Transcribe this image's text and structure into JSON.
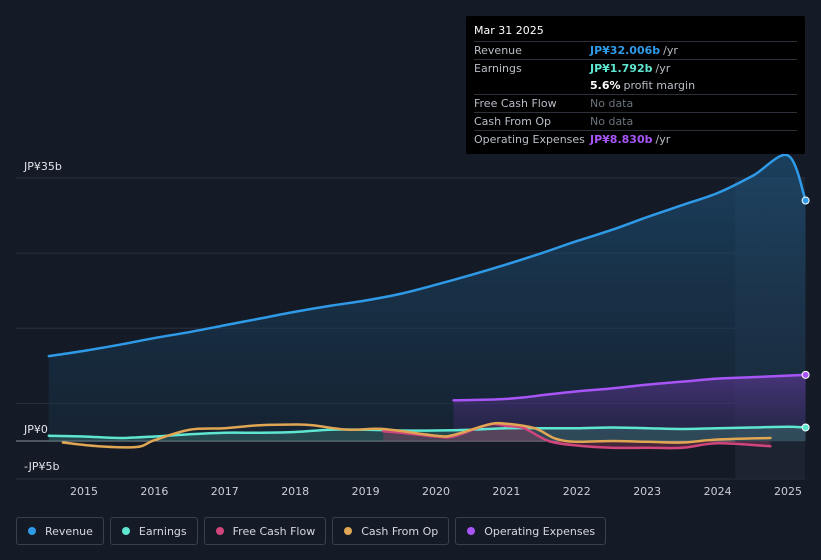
{
  "tooltip": {
    "date": "Mar 31 2025",
    "rows": [
      {
        "label": "Revenue",
        "value": "JP¥32.006b",
        "unit": "/yr",
        "color": "#2f9be8"
      },
      {
        "label": "Earnings",
        "value": "JP¥1.792b",
        "unit": "/yr",
        "color": "#5ee6d0"
      },
      {
        "label": "",
        "value": "5.6%",
        "unit": "profit margin",
        "color": "#ffffff"
      },
      {
        "label": "Free Cash Flow",
        "value": "No data"
      },
      {
        "label": "Cash From Op",
        "value": "No data"
      },
      {
        "label": "Operating Expenses",
        "value": "JP¥8.830b",
        "unit": "/yr",
        "color": "#a855f7"
      }
    ]
  },
  "legend": [
    {
      "label": "Revenue",
      "color": "#2f9be8"
    },
    {
      "label": "Earnings",
      "color": "#5ee6d0"
    },
    {
      "label": "Free Cash Flow",
      "color": "#d0457c"
    },
    {
      "label": "Cash From Op",
      "color": "#e0a654"
    },
    {
      "label": "Operating Expenses",
      "color": "#a855f7"
    }
  ],
  "chart_data": {
    "type": "line",
    "title": "",
    "xlabel": "",
    "ylabel": "",
    "y_tick_labels": {
      "top": "JP¥35b",
      "zero": "JP¥0",
      "bottom": "-JP¥5b"
    },
    "ylim": [
      -5,
      35
    ],
    "xlim": [
      2014.5,
      2025.25
    ],
    "x_ticks": [
      2015,
      2016,
      2017,
      2018,
      2019,
      2020,
      2021,
      2022,
      2023,
      2024,
      2025
    ],
    "x_tick_labels": [
      "2015",
      "2016",
      "2017",
      "2018",
      "2019",
      "2020",
      "2021",
      "2022",
      "2023",
      "2024",
      "2025"
    ],
    "highlight_from": 2024.25,
    "series": [
      {
        "name": "Revenue",
        "color": "#2f9be8",
        "fill": true,
        "x": [
          2014.5,
          2015,
          2015.5,
          2016,
          2016.5,
          2017,
          2017.5,
          2018,
          2018.5,
          2019,
          2019.5,
          2020,
          2020.5,
          2021,
          2021.5,
          2022,
          2022.5,
          2023,
          2023.5,
          2024,
          2024.5,
          2025,
          2025.25
        ],
        "values": [
          11.3,
          12.0,
          12.8,
          13.7,
          14.5,
          15.4,
          16.3,
          17.2,
          18.0,
          18.7,
          19.6,
          20.8,
          22.1,
          23.5,
          25.0,
          26.6,
          28.1,
          29.8,
          31.4,
          33.0,
          35.3,
          38.0,
          32.0
        ]
      },
      {
        "name": "Earnings",
        "color": "#5ee6d0",
        "fill": true,
        "x": [
          2014.5,
          2015,
          2015.5,
          2016,
          2016.5,
          2017,
          2017.5,
          2018,
          2018.5,
          2019,
          2019.5,
          2020,
          2020.5,
          2021,
          2021.5,
          2022,
          2022.5,
          2023,
          2023.5,
          2024,
          2024.5,
          2025,
          2025.25
        ],
        "values": [
          0.7,
          0.6,
          0.4,
          0.6,
          0.9,
          1.1,
          1.1,
          1.2,
          1.5,
          1.5,
          1.4,
          1.4,
          1.5,
          1.7,
          1.7,
          1.7,
          1.8,
          1.7,
          1.6,
          1.7,
          1.8,
          1.9,
          1.8
        ]
      },
      {
        "name": "Free Cash Flow",
        "color": "#d0457c",
        "fill": true,
        "x": [
          2019.25,
          2019.5,
          2020,
          2020.25,
          2020.75,
          2021,
          2021.25,
          2021.6,
          2022,
          2022.5,
          2023,
          2023.5,
          2024,
          2024.75
        ],
        "values": [
          1.3,
          1.1,
          0.6,
          0.6,
          2.2,
          2.0,
          1.7,
          0.0,
          -0.6,
          -0.9,
          -0.9,
          -0.9,
          -0.3,
          -0.7
        ]
      },
      {
        "name": "Cash From Op",
        "color": "#e0a654",
        "fill": false,
        "x": [
          2014.7,
          2015.2,
          2015.75,
          2016,
          2016.5,
          2017,
          2017.5,
          2018,
          2018.25,
          2018.75,
          2019.25,
          2020,
          2020.25,
          2020.75,
          2021,
          2021.4,
          2021.7,
          2022,
          2022.5,
          2023,
          2023.5,
          2024,
          2024.75
        ],
        "values": [
          -0.2,
          -0.7,
          -0.8,
          0.1,
          1.5,
          1.7,
          2.1,
          2.2,
          2.1,
          1.5,
          1.6,
          0.7,
          0.8,
          2.2,
          2.3,
          1.7,
          0.3,
          -0.1,
          0.0,
          -0.1,
          -0.2,
          0.2,
          0.4
        ]
      },
      {
        "name": "Operating Expenses",
        "color": "#a855f7",
        "fill": true,
        "x": [
          2020.25,
          2020.75,
          2021,
          2021.25,
          2021.6,
          2022,
          2022.5,
          2023,
          2023.5,
          2024,
          2024.5,
          2025,
          2025.25
        ],
        "values": [
          5.4,
          5.5,
          5.6,
          5.8,
          6.2,
          6.6,
          7.0,
          7.5,
          7.9,
          8.3,
          8.5,
          8.7,
          8.8
        ]
      }
    ],
    "end_markers": [
      "Revenue",
      "Earnings",
      "Operating Expenses"
    ]
  }
}
